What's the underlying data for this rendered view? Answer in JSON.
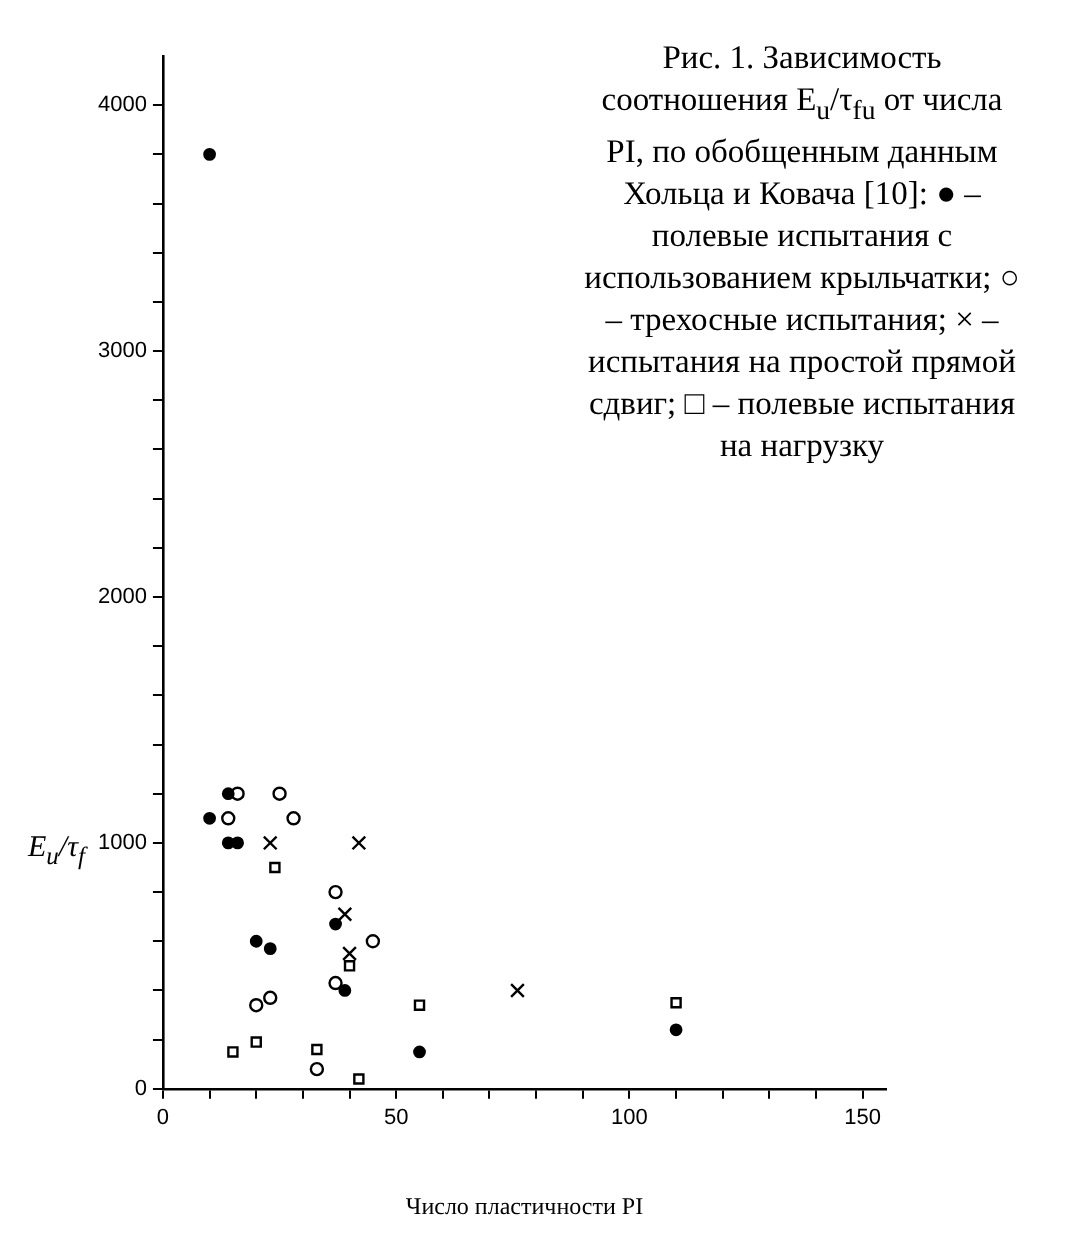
{
  "chart_data": {
    "type": "scatter",
    "xlabel": "Число пластичности PI",
    "ylabel": "E$_{u}$/τ$_{f}$",
    "annotations": [
      "Рис. 1. Зависимость соотношения E$_{u}$/τ$_{fu}$ от числа PI, по обобщенным данным Хольца и Ковача [10]: ● – полевые испытания с использованием крыльчатки; ○ – трехосные испытания; × – испытания на простой прямой сдвиг; □ – полевые испытания на нагрузку"
    ],
    "xlim": [
      0,
      155
    ],
    "ylim": [
      0,
      4200
    ],
    "xticks": [
      0,
      {
        "value": 10,
        "label": null
      },
      {
        "value": 20,
        "label": null
      },
      {
        "value": 30,
        "label": null
      },
      {
        "value": 40,
        "label": null
      },
      50,
      {
        "value": 60,
        "label": null
      },
      {
        "value": 70,
        "label": null
      },
      {
        "value": 80,
        "label": null
      },
      {
        "value": 90,
        "label": null
      },
      100,
      {
        "value": 110,
        "label": null
      },
      {
        "value": 120,
        "label": null
      },
      {
        "value": 130,
        "label": null
      },
      {
        "value": 140,
        "label": null
      },
      150
    ],
    "yticks": [
      0,
      {
        "value": 200,
        "label": null
      },
      {
        "value": 400,
        "label": null
      },
      {
        "value": 600,
        "label": null
      },
      {
        "value": 800,
        "label": null
      },
      1000,
      {
        "value": 1200,
        "label": null
      },
      {
        "value": 1400,
        "label": null
      },
      {
        "value": 1600,
        "label": null
      },
      {
        "value": 1800,
        "label": null
      },
      2000,
      {
        "value": 2200,
        "label": null
      },
      {
        "value": 2400,
        "label": null
      },
      {
        "value": 2600,
        "label": null
      },
      {
        "value": 2800,
        "label": null
      },
      3000,
      {
        "value": 3200,
        "label": null
      },
      {
        "value": 3400,
        "label": null
      },
      {
        "value": 3600,
        "label": null
      },
      {
        "value": 3800,
        "label": null
      },
      4000
    ],
    "grid": false,
    "legend": false,
    "series": [
      {
        "color": "#000000",
        "marker": "circle",
        "x": [
          10,
          10,
          14,
          14,
          16,
          20,
          23,
          37,
          39,
          55,
          110
        ],
        "values": [
          3800,
          1100,
          1200,
          1000,
          1000,
          600,
          570,
          670,
          400,
          150,
          240
        ]
      },
      {
        "color": "#000000",
        "marker": "circle_open",
        "x": [
          16,
          14,
          25,
          28,
          37,
          45,
          37,
          20,
          23,
          33
        ],
        "values": [
          1200,
          1100,
          1200,
          1100,
          800,
          600,
          430,
          340,
          370,
          80
        ]
      },
      {
        "color": "#000000",
        "marker": "cross",
        "x": [
          23,
          42,
          39,
          40,
          76
        ],
        "values": [
          1000,
          1000,
          710,
          550,
          400
        ]
      },
      {
        "color": "#000000",
        "marker": "square",
        "x": [
          24,
          40,
          55,
          15,
          20,
          33,
          42,
          110
        ],
        "values": [
          900,
          500,
          340,
          150,
          190,
          160,
          40,
          350
        ]
      }
    ]
  }
}
